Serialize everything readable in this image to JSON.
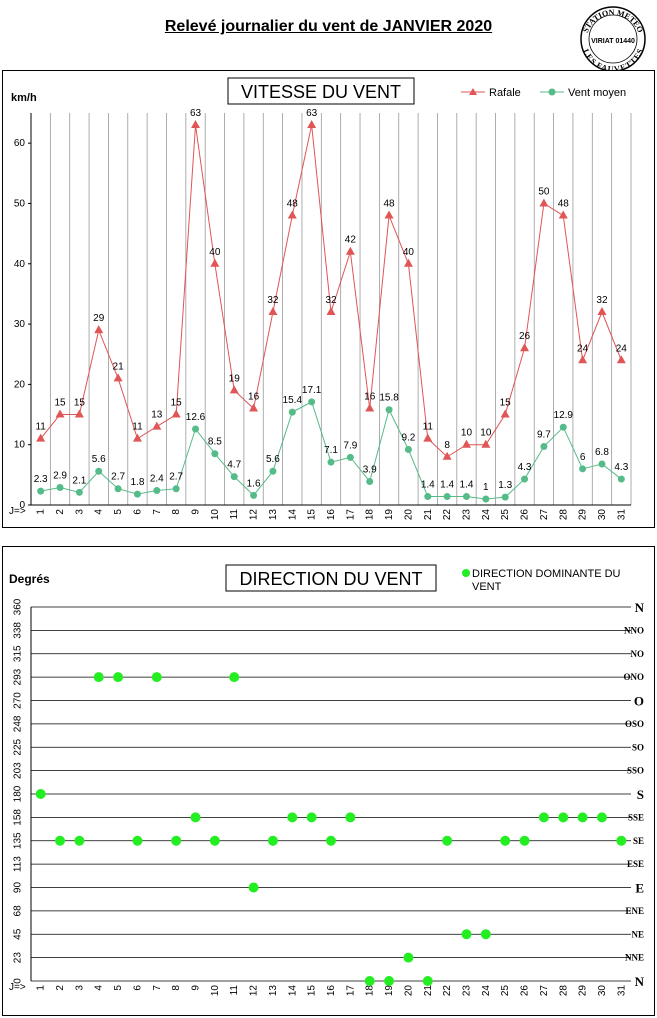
{
  "page_title": "Relevé journalier du vent de JANVIER 2020",
  "stamp": {
    "line1": "STATION METEO",
    "line2": "VIRIAT 01440",
    "line3": "LES FAUVETTES"
  },
  "chart_data": [
    {
      "type": "line",
      "title": "VITESSE DU VENT",
      "ylabel": "km/h",
      "xlabel": "J=>",
      "ylim": [
        0,
        65
      ],
      "yticks": [
        0,
        10,
        20,
        30,
        40,
        50,
        60
      ],
      "grid": "vertical",
      "legend_position": "top-right",
      "categories": [
        "1",
        "2",
        "3",
        "4",
        "5",
        "6",
        "7",
        "8",
        "9",
        "10",
        "11",
        "12",
        "13",
        "14",
        "15",
        "16",
        "17",
        "18",
        "19",
        "20",
        "21",
        "22",
        "23",
        "24",
        "25",
        "26",
        "27",
        "28",
        "29",
        "30",
        "31"
      ],
      "series": [
        {
          "name": "Rafale",
          "color": "#e05555",
          "marker": "triangle",
          "values": [
            11,
            15,
            15,
            29,
            21,
            11,
            13,
            15,
            63,
            40,
            19,
            16,
            32,
            48,
            63,
            32,
            42,
            16,
            48,
            40,
            11,
            8,
            10,
            10,
            15,
            26,
            50,
            48,
            24,
            32,
            24
          ],
          "labels": [
            "11",
            "15",
            "15",
            "29",
            "21",
            "11",
            "13",
            "15",
            "63",
            "40",
            "19",
            "16",
            "32",
            "48",
            "63",
            "32",
            "42",
            "16",
            "48",
            "40",
            "11",
            "8",
            "10",
            "10",
            "15",
            "26",
            "50",
            "48",
            "24",
            "32",
            "24"
          ]
        },
        {
          "name": "Vent moyen",
          "color": "#55bb88",
          "marker": "circle",
          "values": [
            2.3,
            2.9,
            2.1,
            5.6,
            2.7,
            1.8,
            2.4,
            2.7,
            12.6,
            8.5,
            4.7,
            1.6,
            5.6,
            15.4,
            17.1,
            7.1,
            7.9,
            3.9,
            15.8,
            9.2,
            1.4,
            1.4,
            1.4,
            1,
            1.3,
            4.3,
            9.7,
            12.9,
            6,
            6.8,
            4.3
          ],
          "labels": [
            "2.3",
            "2.9",
            "2.1",
            "5.6",
            "2.7",
            "1.8",
            "2.4",
            "2.7",
            "12.6",
            "8.5",
            "4.7",
            "1.6",
            "5.6",
            "15.4",
            "17.1",
            "7.1",
            "7.9",
            "3.9",
            "15.8",
            "9.2",
            "1.4",
            "1.4",
            "1.4",
            "1",
            "1.3",
            "4.3",
            "9.7",
            "12.9",
            "6",
            "6.8",
            "4.3"
          ]
        }
      ]
    },
    {
      "type": "scatter",
      "title": "DIRECTION DU VENT",
      "ylabel": "Degrés",
      "xlabel": "J=>",
      "ylim": [
        0,
        360
      ],
      "yticks": [
        0,
        23,
        45,
        68,
        90,
        113,
        135,
        158,
        180,
        203,
        225,
        248,
        270,
        293,
        315,
        338,
        360
      ],
      "ytick_values": [
        0,
        22.5,
        45,
        67.5,
        90,
        112.5,
        135,
        157.5,
        180,
        202.5,
        225,
        247.5,
        270,
        292.5,
        315,
        337.5,
        360
      ],
      "right_labels": [
        "N",
        "NNE",
        "NE",
        "ENE",
        "E",
        "ESE",
        "SE",
        "SSE",
        "S",
        "SSO",
        "SO",
        "OSO",
        "O",
        "ONO",
        "NO",
        "NNO",
        "N"
      ],
      "grid": "horizontal",
      "legend_position": "top-right",
      "categories": [
        "1",
        "2",
        "3",
        "4",
        "5",
        "6",
        "7",
        "8",
        "9",
        "10",
        "11",
        "12",
        "13",
        "14",
        "15",
        "16",
        "17",
        "18",
        "19",
        "20",
        "21",
        "22",
        "23",
        "24",
        "25",
        "26",
        "27",
        "28",
        "29",
        "30",
        "31"
      ],
      "series": [
        {
          "name": "DIRECTION DOMINANTE DU VENT",
          "color": "#22ee22",
          "values": [
            180,
            135,
            135,
            292.5,
            292.5,
            135,
            292.5,
            135,
            157.5,
            135,
            292.5,
            90,
            135,
            157.5,
            157.5,
            135,
            157.5,
            0,
            0,
            22.5,
            0,
            135,
            45,
            45,
            135,
            135,
            157.5,
            157.5,
            157.5,
            157.5,
            135
          ]
        }
      ]
    }
  ]
}
